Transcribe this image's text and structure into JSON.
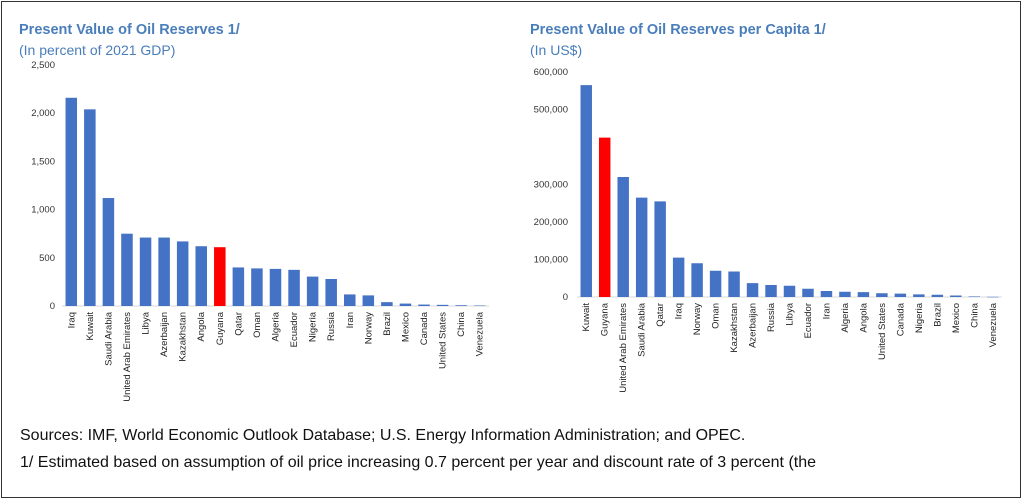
{
  "colors": {
    "bar": "#4472c4",
    "highlight": "#ff0000",
    "title": "#4a7ebb",
    "axis": "#d9d9d9"
  },
  "chart_data": [
    {
      "type": "bar",
      "title": "Present Value of Oil Reserves 1/",
      "subtitle": "(In percent of 2021 GDP)",
      "ylim": [
        0,
        2500
      ],
      "yticks": [
        "2,500",
        "2,000",
        "1,500",
        "1,000",
        "500",
        "0"
      ],
      "ytick_values": [
        2500,
        2000,
        1500,
        1000,
        500,
        0
      ],
      "highlight": "Guyana",
      "categories": [
        "Iraq",
        "Kuwait",
        "Saudi Arabia",
        "United Arab Emirates",
        "Libya",
        "Azerbaijan",
        "Kazakhstan",
        "Angola",
        "Guyana",
        "Qatar",
        "Oman",
        "Algeria",
        "Ecuador",
        "Nigeria",
        "Russia",
        "Iran",
        "Norway",
        "Brazil",
        "Mexico",
        "Canada",
        "United States",
        "China",
        "Venezuela"
      ],
      "values": [
        2160,
        2040,
        1120,
        750,
        710,
        710,
        670,
        620,
        610,
        400,
        390,
        385,
        375,
        305,
        280,
        120,
        110,
        40,
        25,
        15,
        12,
        8,
        5
      ]
    },
    {
      "type": "bar",
      "title": "Present Value of Oil Reserves per Capita 1/",
      "subtitle": "(In US$)",
      "ylim": [
        0,
        600000
      ],
      "yticks": [
        "600,000",
        "500,000",
        "300,000",
        "200,000",
        "100,000",
        "0"
      ],
      "ytick_values": [
        600000,
        500000,
        300000,
        200000,
        100000,
        0
      ],
      "highlight": "Guyana",
      "categories": [
        "Kuwait",
        "Guyana",
        "United Arab Emirates",
        "Saudi Arabia",
        "Qatar",
        "Iraq",
        "Norway",
        "Oman",
        "Kazakhstan",
        "Azerbaijan",
        "Russia",
        "Libya",
        "Ecuador",
        "Iran",
        "Algeria",
        "Angola",
        "United States",
        "Canada",
        "Nigeria",
        "Brazil",
        "Mexico",
        "China",
        "Venezuela"
      ],
      "values": [
        565000,
        425000,
        320000,
        265000,
        255000,
        105000,
        90000,
        70000,
        68000,
        37000,
        32000,
        30000,
        22000,
        16000,
        14000,
        13000,
        10000,
        9000,
        7000,
        6000,
        4000,
        1500,
        500
      ]
    }
  ],
  "footer": {
    "sources": "Sources: IMF, World Economic Outlook Database; U.S. Energy Information Administration; and OPEC.",
    "note": "1/ Estimated based on assumption of oil price increasing 0.7 percent per year and discount rate of 3 percent (the"
  }
}
